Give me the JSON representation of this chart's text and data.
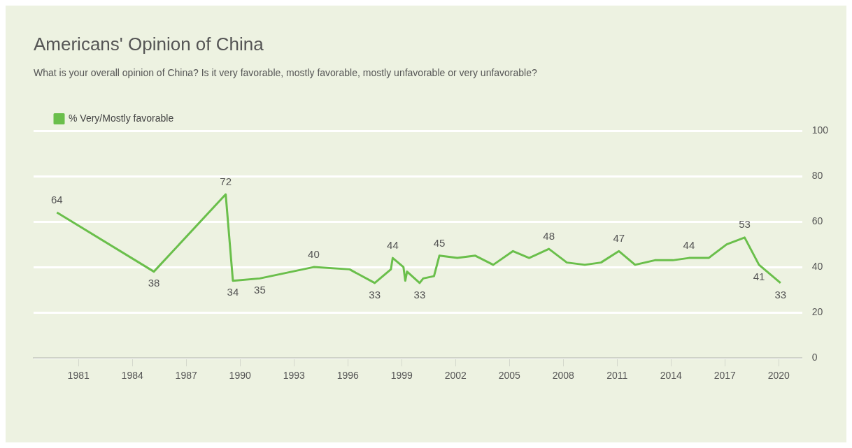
{
  "chart_data": {
    "type": "line",
    "title": "Americans' Opinion of China",
    "subtitle": "What is your overall opinion of China? Is it very favorable, mostly favorable, mostly unfavorable or very unfavorable?",
    "x": [
      1979.8,
      1985.2,
      1989.2,
      1989.6,
      1991.1,
      1994.1,
      1996.1,
      1997.5,
      1998.4,
      1998.5,
      1999.1,
      1999.2,
      1999.3,
      2000.0,
      2000.2,
      2000.8,
      2001.1,
      2002.1,
      2003.1,
      2004.1,
      2005.2,
      2006.1,
      2007.2,
      2008.2,
      2009.2,
      2010.1,
      2011.1,
      2012.0,
      2013.1,
      2014.1,
      2015.0,
      2016.1,
      2017.1,
      2018.1,
      2018.9,
      2020.1
    ],
    "series": [
      {
        "name": "% Very/Mostly favorable",
        "color": "#6abf4b",
        "values": [
          64,
          38,
          72,
          34,
          35,
          40,
          39,
          33,
          39,
          44,
          40,
          34,
          38,
          33,
          35,
          36,
          45,
          44,
          45,
          41,
          47,
          44,
          48,
          42,
          41,
          42,
          47,
          41,
          43,
          43,
          44,
          44,
          50,
          53,
          41,
          33
        ],
        "value_labels": [
          "64",
          "38",
          "72",
          "34",
          "35",
          "40",
          null,
          "33",
          null,
          "44",
          null,
          null,
          null,
          "33",
          null,
          null,
          "45",
          null,
          null,
          null,
          null,
          null,
          "48",
          null,
          null,
          null,
          "47",
          null,
          null,
          null,
          "44",
          null,
          null,
          "53",
          "41",
          "33"
        ]
      }
    ],
    "xlim": [
      1978.5,
      2021.3
    ],
    "xticks": [
      1981,
      1984,
      1987,
      1990,
      1993,
      1996,
      1999,
      2002,
      2005,
      2008,
      2011,
      2014,
      2017,
      2020
    ],
    "ylim": [
      0,
      100
    ],
    "yticks": [
      0,
      20,
      40,
      60,
      80,
      100
    ],
    "grid": "y",
    "legend": "top left",
    "marker": "none",
    "line_style": "solid"
  }
}
